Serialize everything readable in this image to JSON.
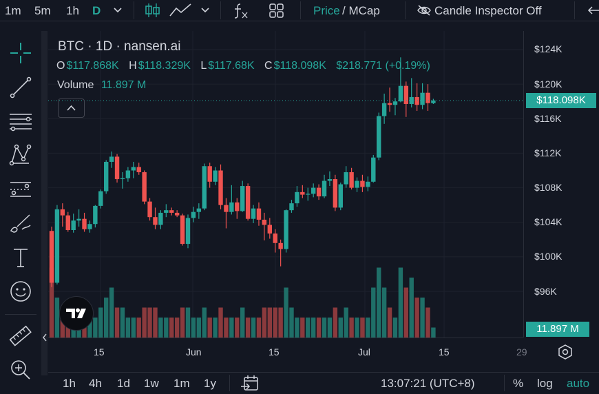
{
  "toolbar": {
    "intervals": [
      "1m",
      "5m",
      "1h",
      "D"
    ],
    "selected_interval": "D",
    "price_label": "Price",
    "mcap_label": " / MCap",
    "candle_inspector": "Candle Inspector Off"
  },
  "legend": {
    "title": "BTC · 1D · nansen.ai",
    "o_label": "O",
    "o_value": "$117.868K",
    "h_label": "H",
    "h_value": "$118.329K",
    "l_label": "L",
    "l_value": "$117.68K",
    "c_label": "C",
    "c_value": "$118.098K",
    "change": "$218.771 (+0.19%)",
    "volume_label": "Volume",
    "volume_value": "11.897 M"
  },
  "price_axis": {
    "ticks": [
      "$124K",
      "$120K",
      "$116K",
      "$112K",
      "$108K",
      "$104K",
      "$100K",
      "$96K"
    ],
    "last_price": "$118.098K",
    "last_volume": "11.897 M"
  },
  "time_axis": {
    "ticks": [
      "15",
      "Jun",
      "15",
      "Jul",
      "15",
      "29"
    ]
  },
  "bottom": {
    "ranges": [
      "1h",
      "4h",
      "1d",
      "1w",
      "1m",
      "1y"
    ],
    "time": "13:07:21 (UTC+8)",
    "percent": "%",
    "log": "log",
    "auto": "auto"
  },
  "colors": {
    "up": "#26a69a",
    "down": "#ef5350",
    "bg": "#131722"
  },
  "chart_data": {
    "type": "candlestick",
    "title": "BTC · 1D · nansen.ai",
    "ylim": [
      94000,
      126000
    ],
    "candles": [
      [
        103000,
        103500,
        96500,
        97000,
        7
      ],
      [
        97000,
        106000,
        96800,
        105500,
        4
      ],
      [
        105500,
        106200,
        103500,
        104800,
        3
      ],
      [
        104800,
        105200,
        102900,
        103100,
        3
      ],
      [
        103100,
        105000,
        102800,
        104200,
        3
      ],
      [
        104200,
        105500,
        103500,
        104400,
        2
      ],
      [
        104400,
        105100,
        102900,
        103200,
        3
      ],
      [
        103200,
        104200,
        102800,
        103800,
        2
      ],
      [
        103800,
        106000,
        103400,
        105900,
        2
      ],
      [
        105900,
        107800,
        105600,
        107600,
        3
      ],
      [
        107600,
        111200,
        107300,
        111000,
        4
      ],
      [
        111000,
        112200,
        110300,
        111600,
        5
      ],
      [
        111600,
        111900,
        108600,
        109000,
        3
      ],
      [
        109000,
        109800,
        107900,
        109100,
        3
      ],
      [
        109100,
        110400,
        108700,
        110000,
        2
      ],
      [
        110000,
        111000,
        109100,
        110400,
        2
      ],
      [
        110400,
        110900,
        109500,
        109800,
        2
      ],
      [
        109800,
        110000,
        106100,
        106400,
        3
      ],
      [
        106400,
        106800,
        104200,
        104600,
        3
      ],
      [
        104600,
        105700,
        103200,
        103700,
        3
      ],
      [
        103700,
        105400,
        103200,
        105100,
        2
      ],
      [
        105100,
        106100,
        104600,
        105400,
        2
      ],
      [
        105400,
        105700,
        104800,
        105100,
        2
      ],
      [
        105100,
        105400,
        104600,
        104800,
        2
      ],
      [
        104800,
        105000,
        101300,
        101500,
        3
      ],
      [
        101500,
        104900,
        101000,
        104500,
        3
      ],
      [
        104500,
        105800,
        104000,
        105200,
        2
      ],
      [
        105200,
        106200,
        104400,
        105600,
        2
      ],
      [
        105600,
        110800,
        105400,
        110500,
        3
      ],
      [
        110500,
        110900,
        108000,
        108700,
        2
      ],
      [
        108700,
        110400,
        108300,
        110000,
        2
      ],
      [
        110000,
        110700,
        105500,
        106000,
        3
      ],
      [
        106000,
        106800,
        103300,
        105200,
        2
      ],
      [
        105200,
        108300,
        104900,
        106300,
        2
      ],
      [
        106300,
        106800,
        104400,
        105300,
        2
      ],
      [
        105300,
        108800,
        105200,
        108200,
        3
      ],
      [
        108200,
        108500,
        104200,
        104400,
        2
      ],
      [
        104400,
        106000,
        103900,
        105600,
        2
      ],
      [
        105600,
        106300,
        103600,
        104300,
        2
      ],
      [
        104300,
        105100,
        101900,
        103700,
        3
      ],
      [
        103700,
        104500,
        102100,
        102700,
        3
      ],
      [
        102700,
        103200,
        100500,
        101600,
        3
      ],
      [
        101600,
        102000,
        98900,
        100900,
        3
      ],
      [
        100900,
        105500,
        100500,
        105400,
        5
      ],
      [
        105400,
        106600,
        105100,
        106200,
        3
      ],
      [
        106200,
        108200,
        105800,
        107500,
        2
      ],
      [
        107500,
        108300,
        106800,
        107200,
        2
      ],
      [
        107200,
        108000,
        106500,
        107300,
        2
      ],
      [
        107300,
        108500,
        106900,
        108000,
        2
      ],
      [
        108000,
        108400,
        106600,
        107000,
        2
      ],
      [
        107000,
        109500,
        106800,
        108800,
        2
      ],
      [
        108800,
        109900,
        108200,
        109000,
        2
      ],
      [
        109000,
        109500,
        105300,
        105700,
        3
      ],
      [
        105700,
        108600,
        105400,
        108400,
        2
      ],
      [
        108400,
        110500,
        108000,
        109800,
        3
      ],
      [
        109800,
        110300,
        107800,
        108000,
        2
      ],
      [
        108000,
        109200,
        107500,
        108800,
        2
      ],
      [
        108800,
        109500,
        107500,
        108100,
        2
      ],
      [
        108100,
        109300,
        107600,
        108700,
        2
      ],
      [
        108700,
        111800,
        108600,
        111500,
        5
      ],
      [
        111500,
        116700,
        111200,
        116300,
        7
      ],
      [
        116300,
        118900,
        115400,
        117800,
        5
      ],
      [
        117800,
        119600,
        116800,
        117600,
        3
      ],
      [
        117600,
        118400,
        116400,
        118000,
        2
      ],
      [
        118000,
        123100,
        117900,
        119800,
        7
      ],
      [
        119800,
        120300,
        116200,
        117700,
        5
      ],
      [
        117700,
        120700,
        117300,
        118500,
        6
      ],
      [
        118500,
        120100,
        116900,
        117600,
        4
      ],
      [
        117600,
        120100,
        117100,
        119000,
        4
      ],
      [
        119000,
        120000,
        116900,
        117800,
        3
      ],
      [
        117800,
        118300,
        117700,
        118100,
        1
      ]
    ]
  }
}
